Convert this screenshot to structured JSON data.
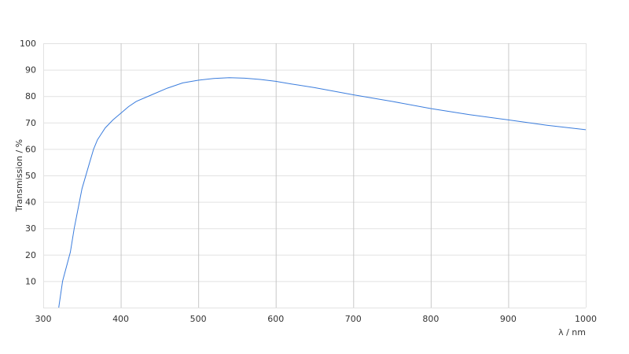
{
  "chart_data": {
    "type": "line",
    "title": "",
    "xlabel": "λ / nm",
    "ylabel": "Transmission / %",
    "xlim": [
      300,
      1000
    ],
    "ylim": [
      0,
      100
    ],
    "xticks": [
      300,
      400,
      500,
      600,
      700,
      800,
      900,
      1000
    ],
    "yticks": [
      10,
      20,
      30,
      40,
      50,
      60,
      70,
      80,
      90,
      100
    ],
    "grid": true,
    "line_color": "#3b7ddd",
    "series": [
      {
        "x": [
          320,
          325,
          335,
          340,
          350,
          360,
          365,
          370,
          380,
          390,
          400,
          410,
          420,
          440,
          460,
          480,
          500,
          520,
          540,
          560,
          580,
          600,
          620,
          650,
          700,
          750,
          800,
          850,
          900,
          950,
          1000
        ],
        "y": [
          0,
          10,
          21,
          30,
          45,
          55,
          60,
          63.5,
          68,
          71,
          73.5,
          76,
          78,
          80.5,
          83,
          85,
          86,
          86.7,
          87,
          86.8,
          86.3,
          85.6,
          84.6,
          83.2,
          80.5,
          78,
          75.3,
          73,
          71,
          69,
          67.3
        ]
      }
    ]
  }
}
